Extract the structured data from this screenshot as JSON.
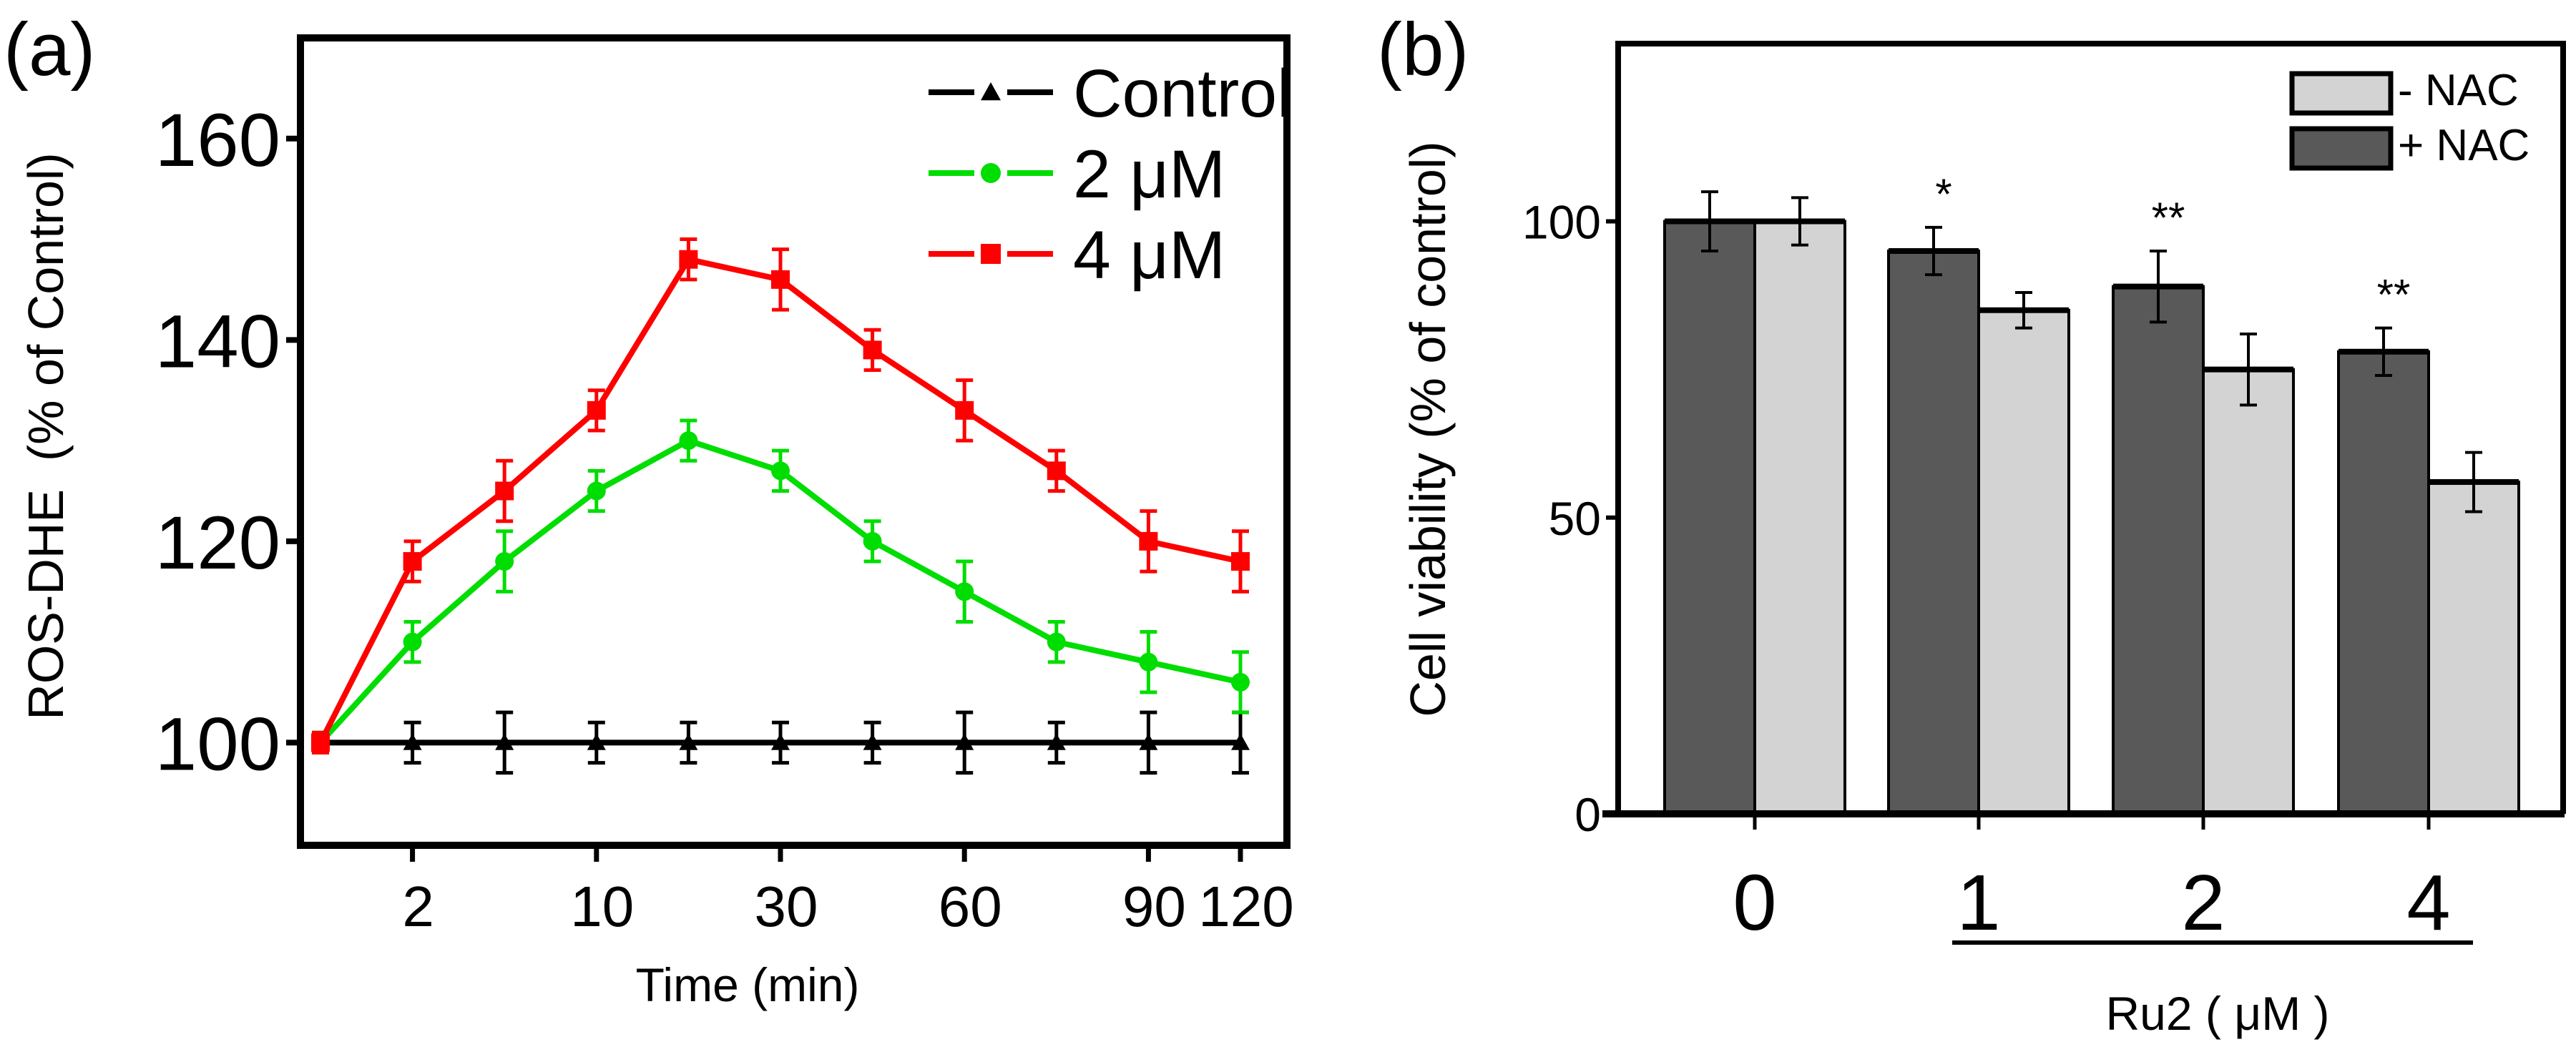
{
  "chart_data": [
    {
      "panel_label": "(a)",
      "type": "line",
      "title": "",
      "xlabel": "Time (min)",
      "ylabel": "ROS-DHE  (% of Control)",
      "x_tick_labels": [
        {
          "index": 1,
          "label": "2"
        },
        {
          "index": 3,
          "label": "10"
        },
        {
          "index": 5,
          "label": "30"
        },
        {
          "index": 7,
          "label": "60"
        },
        {
          "index": 9,
          "label": "90"
        },
        {
          "index": 10,
          "label": "120"
        }
      ],
      "y_ticks": [
        100,
        120,
        140,
        160
      ],
      "ylim": [
        89.8,
        170
      ],
      "grid": false,
      "legend_position": "top-right",
      "series": [
        {
          "name": "Control",
          "color": "#000000",
          "marker": "triangle",
          "values": [
            100,
            100,
            100,
            100,
            100,
            100,
            100,
            100,
            100,
            100,
            100
          ],
          "errors": [
            1,
            2,
            3,
            2,
            2,
            2,
            2,
            3,
            2,
            3,
            3
          ]
        },
        {
          "name": "2 μM",
          "color": "#00dd00",
          "marker": "circle",
          "values": [
            100,
            110,
            118,
            125,
            130,
            127,
            120,
            115,
            110,
            108,
            106
          ],
          "errors": [
            1,
            2,
            3,
            2,
            2,
            2,
            2,
            3,
            2,
            3,
            3
          ]
        },
        {
          "name": "4 μM",
          "color": "#ff0000",
          "marker": "square",
          "values": [
            100,
            118,
            125,
            133,
            148,
            146,
            139,
            133,
            127,
            120,
            118
          ],
          "errors": [
            1,
            2,
            3,
            2,
            2,
            3,
            2,
            3,
            2,
            3,
            3
          ]
        }
      ]
    },
    {
      "panel_label": "(b)",
      "type": "bar",
      "title": "",
      "xlabel": "Ru2 ( μM )",
      "ylabel": "Cell viability (% of control)",
      "categories": [
        "0",
        "1",
        "2",
        "4"
      ],
      "y_ticks": [
        0,
        50,
        100
      ],
      "ylim": [
        0,
        130
      ],
      "grid": false,
      "legend_position": "top-right",
      "series": [
        {
          "name": "+ NAC",
          "color": "#595959",
          "values": [
            100,
            95,
            89,
            78
          ],
          "errors": [
            5,
            4,
            6,
            4
          ]
        },
        {
          "name": "- NAC",
          "color": "#d3d3d3",
          "values": [
            100,
            85,
            75,
            56
          ],
          "errors": [
            4,
            3,
            6,
            5
          ]
        }
      ],
      "legend_order": [
        "- NAC",
        "+ NAC"
      ],
      "annotations": [
        "",
        "*",
        "**",
        "**"
      ]
    }
  ]
}
